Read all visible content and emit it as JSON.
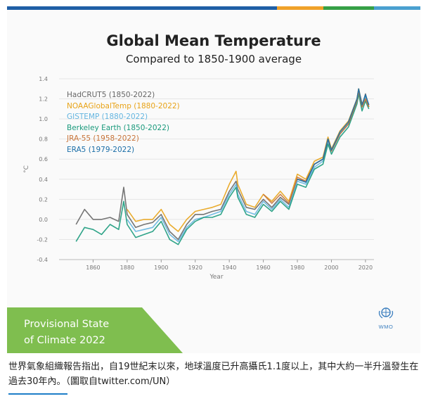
{
  "top_bar": {
    "colors": [
      "#1f5fa6",
      "#f0a22a",
      "#36a046",
      "#4aa0d0"
    ]
  },
  "title": "Global Mean Temperature",
  "subtitle": "Compared to 1850-1900 average",
  "banner": {
    "line1": "Provisional State",
    "line2": "of Climate 2022",
    "color": "#7fbe4f"
  },
  "logo": {
    "text": "WMO",
    "icon": "wmo-emblem-icon"
  },
  "caption": "世界氣象組織報告指出，自19世紀末以來，地球溫度已升高攝氏1.1度以上，其中大約一半升溫發生在過去30年內。（圖取自twitter.com/UN）",
  "chart_data": {
    "type": "line",
    "title": "Global Mean Temperature",
    "subtitle": "Compared to 1850-1900 average",
    "xlabel": "Year",
    "ylabel": "°C",
    "xlim": [
      1840,
      2025
    ],
    "ylim": [
      -0.4,
      1.4
    ],
    "xticks": [
      "1860",
      "1880",
      "1900",
      "1920",
      "1940",
      "1960",
      "1980",
      "2000",
      "2020"
    ],
    "yticks": [
      "-0.4",
      "-0.2",
      "0.0",
      "0.2",
      "0.4",
      "0.6",
      "0.8",
      "1.0",
      "1.2",
      "1.4"
    ],
    "grid": true,
    "legend_position": "top-left",
    "x": [
      1850,
      1855,
      1860,
      1865,
      1870,
      1875,
      1878,
      1880,
      1885,
      1890,
      1895,
      1900,
      1905,
      1910,
      1915,
      1920,
      1925,
      1930,
      1935,
      1940,
      1944,
      1945,
      1950,
      1955,
      1960,
      1965,
      1970,
      1975,
      1980,
      1985,
      1990,
      1995,
      1998,
      2000,
      2005,
      2010,
      2015,
      2016,
      2018,
      2020,
      2022
    ],
    "series": [
      {
        "name": "HadCRUT5 (1850-2022)",
        "color": "#666666",
        "values": [
          -0.05,
          0.1,
          0.0,
          0.0,
          0.02,
          -0.02,
          0.32,
          0.05,
          -0.08,
          -0.05,
          -0.03,
          0.05,
          -0.12,
          -0.2,
          -0.05,
          0.05,
          0.05,
          0.08,
          0.1,
          0.28,
          0.38,
          0.3,
          0.12,
          0.1,
          0.2,
          0.12,
          0.22,
          0.15,
          0.4,
          0.38,
          0.55,
          0.6,
          0.8,
          0.7,
          0.85,
          0.95,
          1.18,
          1.3,
          1.12,
          1.25,
          1.12
        ]
      },
      {
        "name": "NOAAGlobalTemp (1880-2022)",
        "color": "#e8a317",
        "values": [
          null,
          null,
          null,
          null,
          null,
          null,
          null,
          0.1,
          -0.02,
          0.0,
          0.0,
          0.1,
          -0.05,
          -0.12,
          0.0,
          0.08,
          0.1,
          0.12,
          0.15,
          0.35,
          0.48,
          0.35,
          0.15,
          0.12,
          0.25,
          0.18,
          0.28,
          0.18,
          0.45,
          0.4,
          0.58,
          0.62,
          0.82,
          0.7,
          0.88,
          0.98,
          1.2,
          1.3,
          1.15,
          1.22,
          1.12
        ]
      },
      {
        "name": "GISTEMP (1880-2022)",
        "color": "#64b5e0",
        "values": [
          null,
          null,
          null,
          null,
          null,
          null,
          null,
          0.0,
          -0.12,
          -0.1,
          -0.08,
          0.02,
          -0.15,
          -0.22,
          -0.08,
          0.0,
          0.02,
          0.05,
          0.08,
          0.25,
          0.35,
          0.25,
          0.08,
          0.05,
          0.18,
          0.1,
          0.2,
          0.12,
          0.38,
          0.35,
          0.52,
          0.58,
          0.78,
          0.68,
          0.85,
          0.95,
          1.18,
          1.28,
          1.12,
          1.22,
          1.14
        ]
      },
      {
        "name": "Berkeley Earth (1850-2022)",
        "color": "#1a9a7c",
        "values": [
          -0.22,
          -0.08,
          -0.1,
          -0.15,
          -0.05,
          -0.1,
          0.18,
          -0.05,
          -0.18,
          -0.15,
          -0.12,
          -0.02,
          -0.2,
          -0.25,
          -0.1,
          -0.02,
          0.02,
          0.02,
          0.05,
          0.22,
          0.32,
          0.22,
          0.05,
          0.02,
          0.15,
          0.08,
          0.18,
          0.1,
          0.35,
          0.32,
          0.5,
          0.55,
          0.75,
          0.65,
          0.82,
          0.92,
          1.15,
          1.25,
          1.08,
          1.18,
          1.1
        ]
      },
      {
        "name": "JRA-55 (1958-2022)",
        "color": "#c8743a",
        "values": [
          null,
          null,
          null,
          null,
          null,
          null,
          null,
          null,
          null,
          null,
          null,
          null,
          null,
          null,
          null,
          null,
          null,
          null,
          null,
          null,
          null,
          null,
          null,
          null,
          0.25,
          0.16,
          0.25,
          0.16,
          0.42,
          0.38,
          0.55,
          0.6,
          0.8,
          0.68,
          0.85,
          0.95,
          1.18,
          1.28,
          1.12,
          1.2,
          1.12
        ]
      },
      {
        "name": "ERA5 (1979-2022)",
        "color": "#1c6fa8",
        "values": [
          null,
          null,
          null,
          null,
          null,
          null,
          null,
          null,
          null,
          null,
          null,
          null,
          null,
          null,
          null,
          null,
          null,
          null,
          null,
          null,
          null,
          null,
          null,
          null,
          null,
          null,
          null,
          null,
          0.4,
          0.37,
          0.55,
          0.6,
          0.8,
          0.69,
          0.87,
          0.97,
          1.2,
          1.3,
          1.14,
          1.24,
          1.14
        ]
      }
    ]
  }
}
